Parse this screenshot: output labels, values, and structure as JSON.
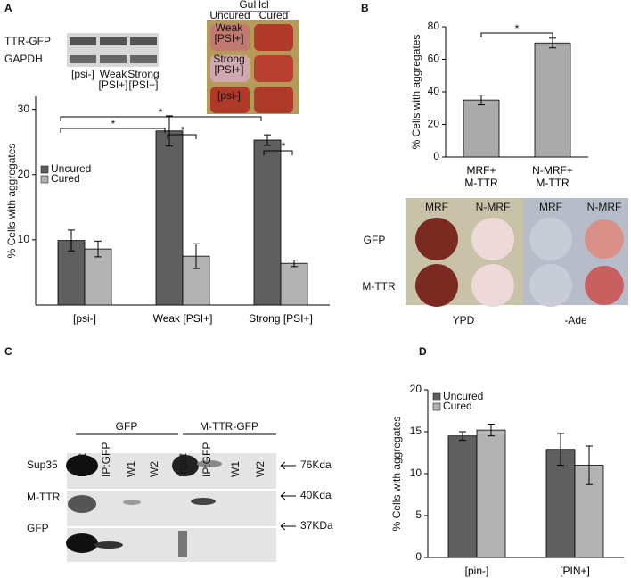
{
  "panels": {
    "a": "A",
    "b": "B",
    "c": "C",
    "d": "D"
  },
  "blot_a": {
    "rows": [
      "TTR-GFP",
      "GAPDH"
    ],
    "lanes": [
      [
        "[psi-]"
      ],
      [
        "Weak",
        "[PSI+]"
      ],
      [
        "Strong",
        "[PSI+]"
      ]
    ]
  },
  "plates_a": {
    "treatment": "GuHcl",
    "columns": [
      "Uncured",
      "Cured"
    ],
    "rows": [
      [
        "Weak",
        "[PSI+]"
      ],
      [
        "Strong",
        "[PSI+]"
      ],
      [
        "[psi-]"
      ]
    ]
  },
  "plates_b": {
    "columns": [
      "MRF",
      "N-MRF",
      "MRF",
      "N-MRF"
    ],
    "rows": [
      "GFP",
      "M-TTR"
    ],
    "media": [
      "YPD",
      "-Ade"
    ]
  },
  "blot_c": {
    "groups": [
      "GFP",
      "M-TTR-GFP"
    ],
    "lanes": [
      "Input",
      "IP:GFP",
      "W1",
      "W2",
      "Input",
      "IP:GFP",
      "W1",
      "W2"
    ],
    "rows": [
      "Sup35",
      "M-TTR",
      "GFP"
    ],
    "sizes": [
      "76Kda",
      "40Kda",
      "37KDa"
    ]
  },
  "chart_data": [
    {
      "type": "bar",
      "y_label": "% Cells with aggregates",
      "categories": [
        "[psi-]",
        "Weak [PSI+]",
        "Strong [PSI+]"
      ],
      "series": [
        {
          "name": "Uncured",
          "color": "#5f5f5f",
          "values": [
            9.9,
            26.7,
            25.3
          ],
          "errors": [
            1.6,
            2.3,
            0.8
          ]
        },
        {
          "name": "Cured",
          "color": "#b3b3b3",
          "values": [
            8.6,
            7.5,
            6.4
          ],
          "errors": [
            1.2,
            1.9,
            0.5
          ]
        }
      ],
      "ylim": [
        0,
        32
      ],
      "yticks": [
        10,
        20,
        30
      ],
      "legend": "top-left",
      "significance": [
        "*",
        "*",
        "*",
        "*"
      ]
    },
    {
      "type": "bar",
      "y_label": "% Cells with aggregates",
      "categories": [
        "MRF+\nM-TTR",
        "N-MRF+\nM-TTR"
      ],
      "color": "#aaaaaa",
      "values": [
        35,
        70
      ],
      "errors": [
        3,
        3
      ],
      "ylim": [
        0,
        80
      ],
      "yticks": [
        0,
        20,
        40,
        60,
        80
      ],
      "significance": [
        "*"
      ]
    },
    {
      "type": "bar",
      "y_label": "% Cells with aggregates",
      "categories": [
        "[pin-]",
        "[PIN+]"
      ],
      "series": [
        {
          "name": "Uncured",
          "color": "#5f5f5f",
          "values": [
            14.5,
            12.9
          ],
          "errors": [
            0.5,
            1.9
          ]
        },
        {
          "name": "Cured",
          "color": "#b3b3b3",
          "values": [
            15.2,
            11.0
          ],
          "errors": [
            0.7,
            2.3
          ]
        }
      ],
      "ylim": [
        0,
        20
      ],
      "yticks": [
        0,
        5,
        10,
        15,
        20
      ],
      "legend": "top-left"
    }
  ]
}
